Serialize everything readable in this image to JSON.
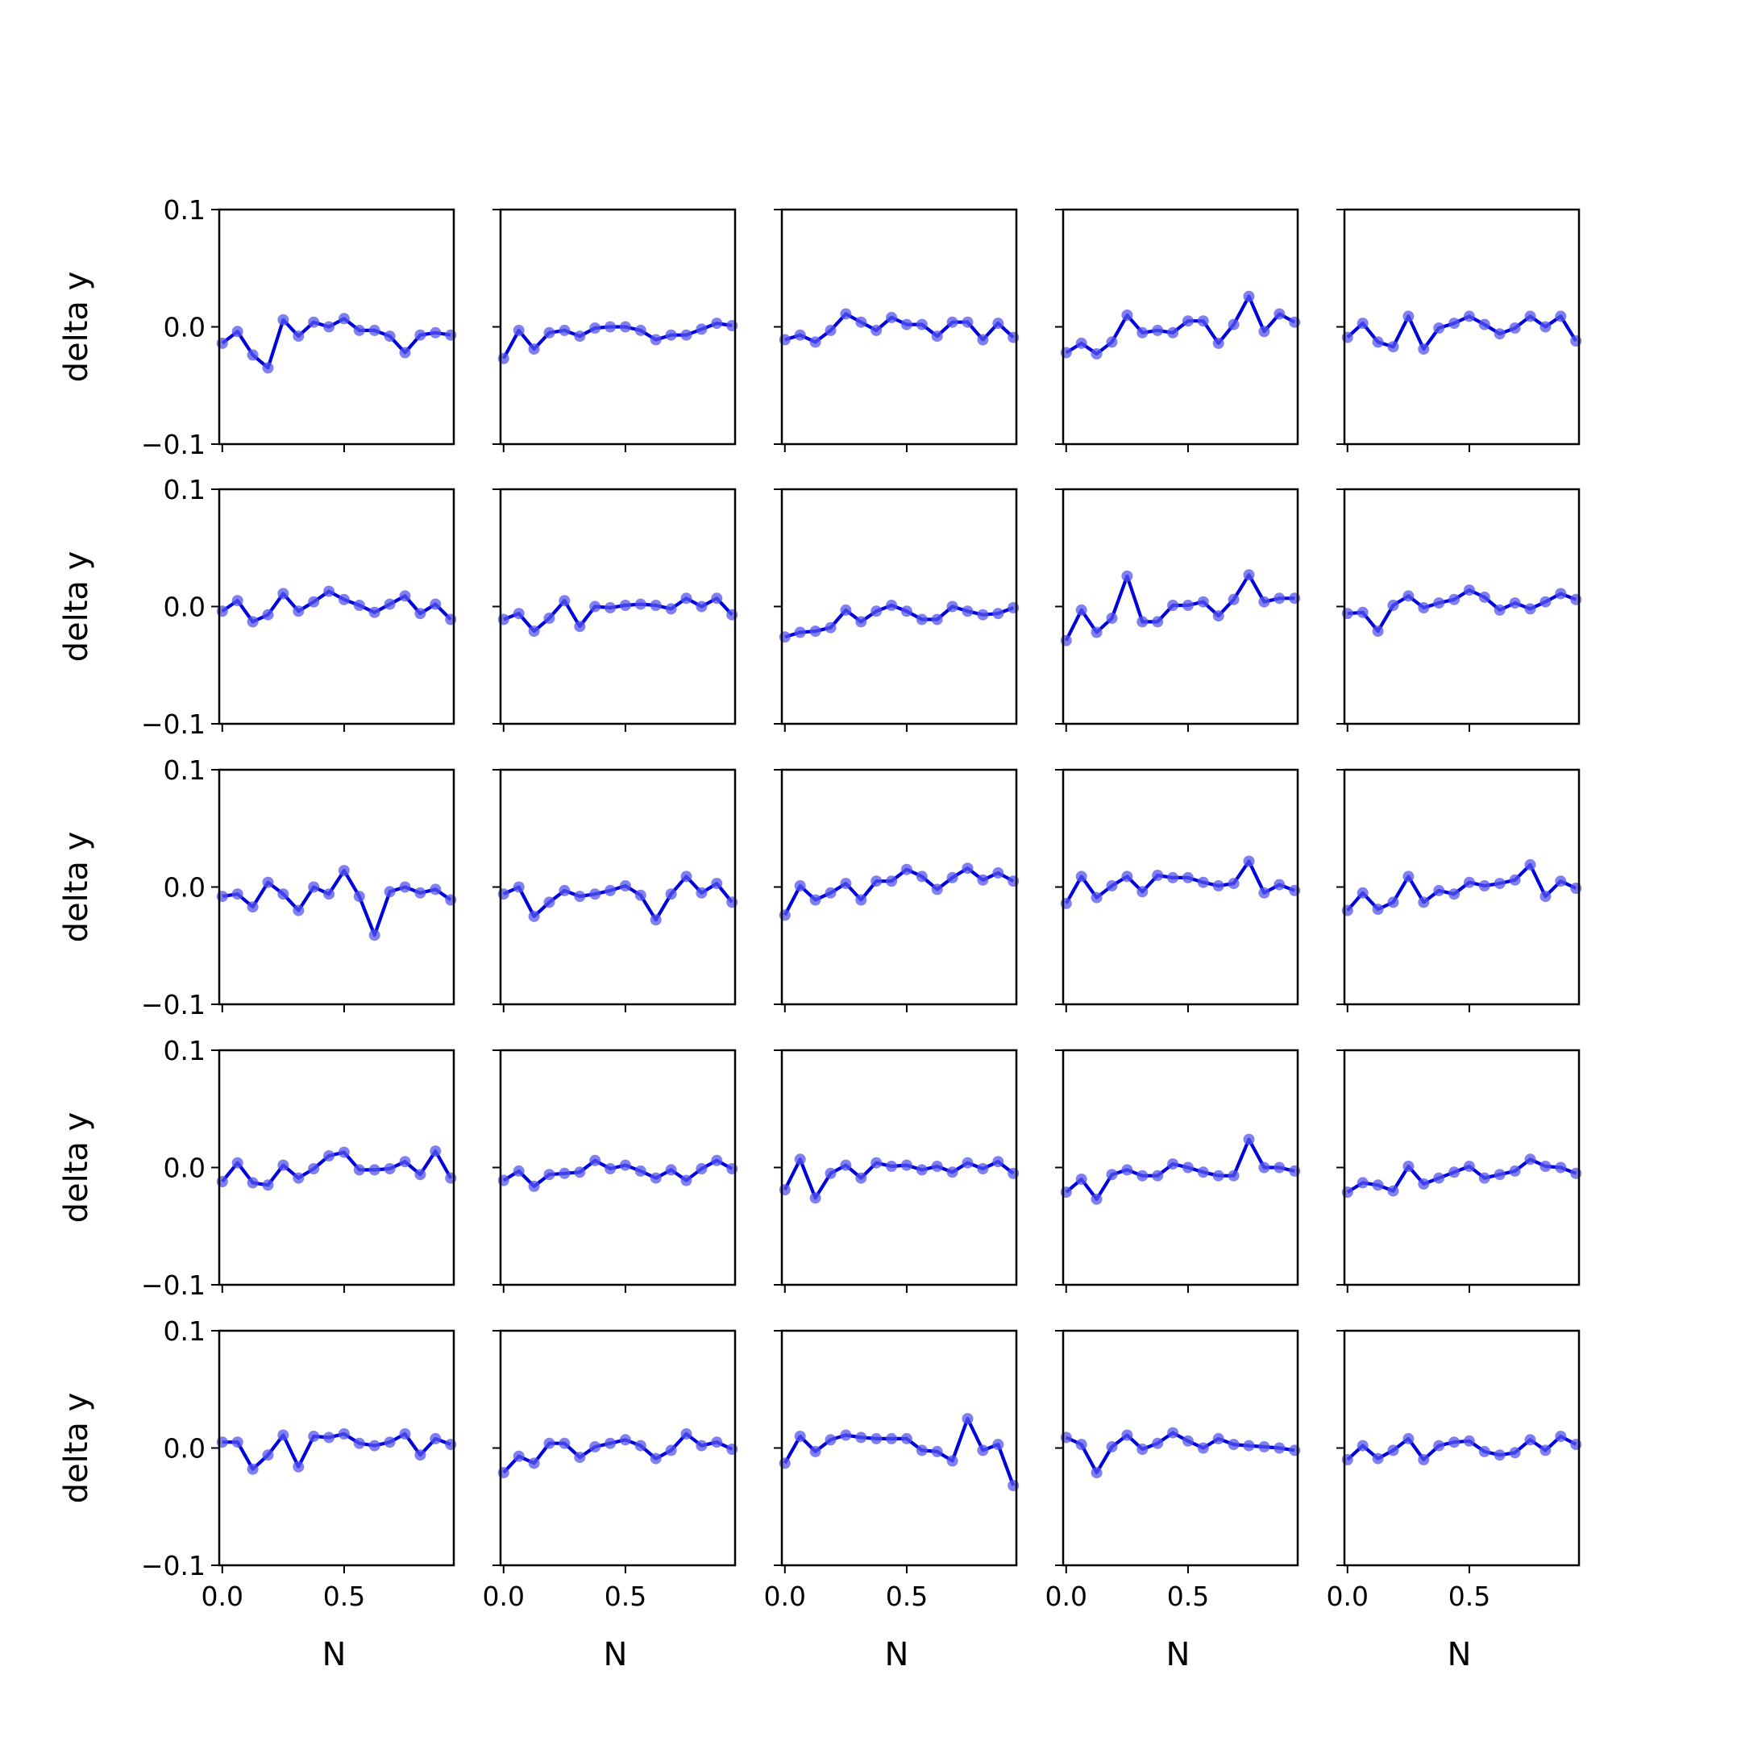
{
  "figure": {
    "rows": 5,
    "cols": 5
  },
  "chart_data": {
    "type": "line",
    "layout": "grid-5x5",
    "markers": true,
    "line_color": "#0000dd",
    "marker_color": "#5555ee",
    "xlabel": "N",
    "ylabel": "delta y",
    "xlim": [
      -0.0125,
      0.95
    ],
    "ylim": [
      -0.1,
      0.1
    ],
    "xticks": [
      0.0,
      0.5
    ],
    "xtick_labels": [
      "0.0",
      "0.5"
    ],
    "yticks": [
      0.1,
      0.0,
      -0.1
    ],
    "ytick_labels": [
      "0.1",
      "0.0",
      "−0.1"
    ],
    "grid": false,
    "x": [
      0.0,
      0.0625,
      0.125,
      0.1875,
      0.25,
      0.3125,
      0.375,
      0.4375,
      0.5,
      0.5625,
      0.625,
      0.6875,
      0.75,
      0.8125,
      0.875,
      0.9375
    ],
    "panels": [
      {
        "row": 0,
        "col": 0,
        "values": [
          -0.014,
          -0.004,
          -0.024,
          -0.035,
          0.006,
          -0.008,
          0.004,
          0.0,
          0.007,
          -0.003,
          -0.003,
          -0.008,
          -0.022,
          -0.007,
          -0.005,
          -0.007
        ]
      },
      {
        "row": 0,
        "col": 1,
        "values": [
          -0.027,
          -0.003,
          -0.019,
          -0.005,
          -0.003,
          -0.008,
          -0.001,
          0.0,
          0.0,
          -0.003,
          -0.011,
          -0.007,
          -0.007,
          -0.002,
          0.003,
          0.001
        ]
      },
      {
        "row": 0,
        "col": 2,
        "values": [
          -0.011,
          -0.007,
          -0.013,
          -0.003,
          0.011,
          0.004,
          -0.003,
          0.008,
          0.002,
          0.002,
          -0.008,
          0.004,
          0.004,
          -0.011,
          0.003,
          -0.009
        ]
      },
      {
        "row": 0,
        "col": 3,
        "values": [
          -0.022,
          -0.014,
          -0.023,
          -0.013,
          0.01,
          -0.005,
          -0.003,
          -0.005,
          0.005,
          0.005,
          -0.014,
          0.002,
          0.026,
          -0.004,
          0.011,
          0.004
        ]
      },
      {
        "row": 0,
        "col": 4,
        "values": [
          -0.009,
          0.003,
          -0.013,
          -0.017,
          0.009,
          -0.019,
          -0.001,
          0.003,
          0.009,
          0.002,
          -0.006,
          -0.001,
          0.009,
          0.0,
          0.009,
          -0.012
        ]
      },
      {
        "row": 1,
        "col": 0,
        "values": [
          -0.004,
          0.005,
          -0.013,
          -0.007,
          0.011,
          -0.004,
          0.004,
          0.013,
          0.006,
          0.001,
          -0.005,
          0.002,
          0.009,
          -0.006,
          0.002,
          -0.011
        ]
      },
      {
        "row": 1,
        "col": 1,
        "values": [
          -0.011,
          -0.006,
          -0.021,
          -0.01,
          0.005,
          -0.017,
          0.0,
          -0.001,
          0.001,
          0.002,
          0.001,
          -0.002,
          0.007,
          0.0,
          0.007,
          -0.007
        ]
      },
      {
        "row": 1,
        "col": 2,
        "values": [
          -0.026,
          -0.022,
          -0.021,
          -0.018,
          -0.003,
          -0.013,
          -0.004,
          0.001,
          -0.004,
          -0.011,
          -0.011,
          0.0,
          -0.004,
          -0.007,
          -0.006,
          -0.001
        ]
      },
      {
        "row": 1,
        "col": 3,
        "values": [
          -0.029,
          -0.003,
          -0.022,
          -0.01,
          0.026,
          -0.013,
          -0.013,
          0.001,
          0.001,
          0.004,
          -0.008,
          0.006,
          0.027,
          0.004,
          0.007,
          0.007
        ]
      },
      {
        "row": 1,
        "col": 4,
        "values": [
          -0.006,
          -0.005,
          -0.021,
          0.001,
          0.009,
          -0.001,
          0.003,
          0.006,
          0.014,
          0.008,
          -0.003,
          0.003,
          -0.002,
          0.004,
          0.011,
          0.006
        ]
      },
      {
        "row": 2,
        "col": 0,
        "values": [
          -0.008,
          -0.006,
          -0.017,
          0.004,
          -0.006,
          -0.02,
          0.0,
          -0.006,
          0.014,
          -0.008,
          -0.041,
          -0.004,
          0.0,
          -0.005,
          -0.002,
          -0.011
        ]
      },
      {
        "row": 2,
        "col": 1,
        "values": [
          -0.006,
          0.0,
          -0.025,
          -0.013,
          -0.003,
          -0.008,
          -0.006,
          -0.003,
          0.001,
          -0.007,
          -0.028,
          -0.006,
          0.009,
          -0.005,
          0.003,
          -0.013
        ]
      },
      {
        "row": 2,
        "col": 2,
        "values": [
          -0.024,
          0.001,
          -0.011,
          -0.005,
          0.003,
          -0.011,
          0.005,
          0.005,
          0.015,
          0.009,
          -0.002,
          0.008,
          0.016,
          0.006,
          0.012,
          0.005
        ]
      },
      {
        "row": 2,
        "col": 3,
        "values": [
          -0.014,
          0.009,
          -0.009,
          0.001,
          0.009,
          -0.004,
          0.01,
          0.008,
          0.008,
          0.004,
          0.001,
          0.003,
          0.022,
          -0.005,
          0.002,
          -0.003
        ]
      },
      {
        "row": 2,
        "col": 4,
        "values": [
          -0.02,
          -0.005,
          -0.019,
          -0.013,
          0.009,
          -0.013,
          -0.003,
          -0.006,
          0.004,
          0.001,
          0.003,
          0.006,
          0.019,
          -0.008,
          0.005,
          -0.001
        ]
      },
      {
        "row": 3,
        "col": 0,
        "values": [
          -0.012,
          0.004,
          -0.013,
          -0.015,
          0.002,
          -0.009,
          -0.001,
          0.01,
          0.013,
          -0.002,
          -0.002,
          -0.001,
          0.005,
          -0.006,
          0.014,
          -0.009
        ]
      },
      {
        "row": 3,
        "col": 1,
        "values": [
          -0.011,
          -0.003,
          -0.016,
          -0.006,
          -0.005,
          -0.004,
          0.006,
          -0.001,
          0.002,
          -0.003,
          -0.009,
          -0.002,
          -0.011,
          -0.001,
          0.006,
          -0.001
        ]
      },
      {
        "row": 3,
        "col": 2,
        "values": [
          -0.019,
          0.007,
          -0.026,
          -0.005,
          0.002,
          -0.009,
          0.004,
          0.001,
          0.002,
          -0.002,
          0.001,
          -0.004,
          0.004,
          -0.001,
          0.005,
          -0.005
        ]
      },
      {
        "row": 3,
        "col": 3,
        "values": [
          -0.021,
          -0.01,
          -0.027,
          -0.006,
          -0.002,
          -0.007,
          -0.007,
          0.003,
          0.0,
          -0.004,
          -0.007,
          -0.007,
          0.024,
          0.0,
          0.0,
          -0.003
        ]
      },
      {
        "row": 3,
        "col": 4,
        "values": [
          -0.021,
          -0.013,
          -0.015,
          -0.02,
          0.001,
          -0.014,
          -0.009,
          -0.004,
          0.001,
          -0.009,
          -0.006,
          -0.003,
          0.007,
          0.001,
          0.0,
          -0.005
        ]
      },
      {
        "row": 4,
        "col": 0,
        "values": [
          0.005,
          0.005,
          -0.018,
          -0.006,
          0.011,
          -0.016,
          0.01,
          0.009,
          0.012,
          0.004,
          0.002,
          0.005,
          0.012,
          -0.006,
          0.008,
          0.003
        ]
      },
      {
        "row": 4,
        "col": 1,
        "values": [
          -0.021,
          -0.007,
          -0.013,
          0.004,
          0.004,
          -0.008,
          0.001,
          0.004,
          0.007,
          0.002,
          -0.009,
          -0.002,
          0.012,
          0.002,
          0.005,
          -0.001
        ]
      },
      {
        "row": 4,
        "col": 2,
        "values": [
          -0.013,
          0.01,
          -0.003,
          0.007,
          0.011,
          0.009,
          0.008,
          0.008,
          0.008,
          -0.002,
          -0.003,
          -0.011,
          0.025,
          -0.002,
          0.003,
          -0.032
        ]
      },
      {
        "row": 4,
        "col": 3,
        "values": [
          0.009,
          0.003,
          -0.021,
          0.001,
          0.011,
          -0.001,
          0.004,
          0.013,
          0.006,
          0.0,
          0.008,
          0.003,
          0.002,
          0.001,
          0.0,
          -0.002
        ]
      },
      {
        "row": 4,
        "col": 4,
        "values": [
          -0.01,
          0.002,
          -0.009,
          -0.002,
          0.008,
          -0.01,
          0.002,
          0.005,
          0.006,
          -0.003,
          -0.006,
          -0.004,
          0.007,
          -0.002,
          0.01,
          0.003
        ]
      }
    ]
  }
}
